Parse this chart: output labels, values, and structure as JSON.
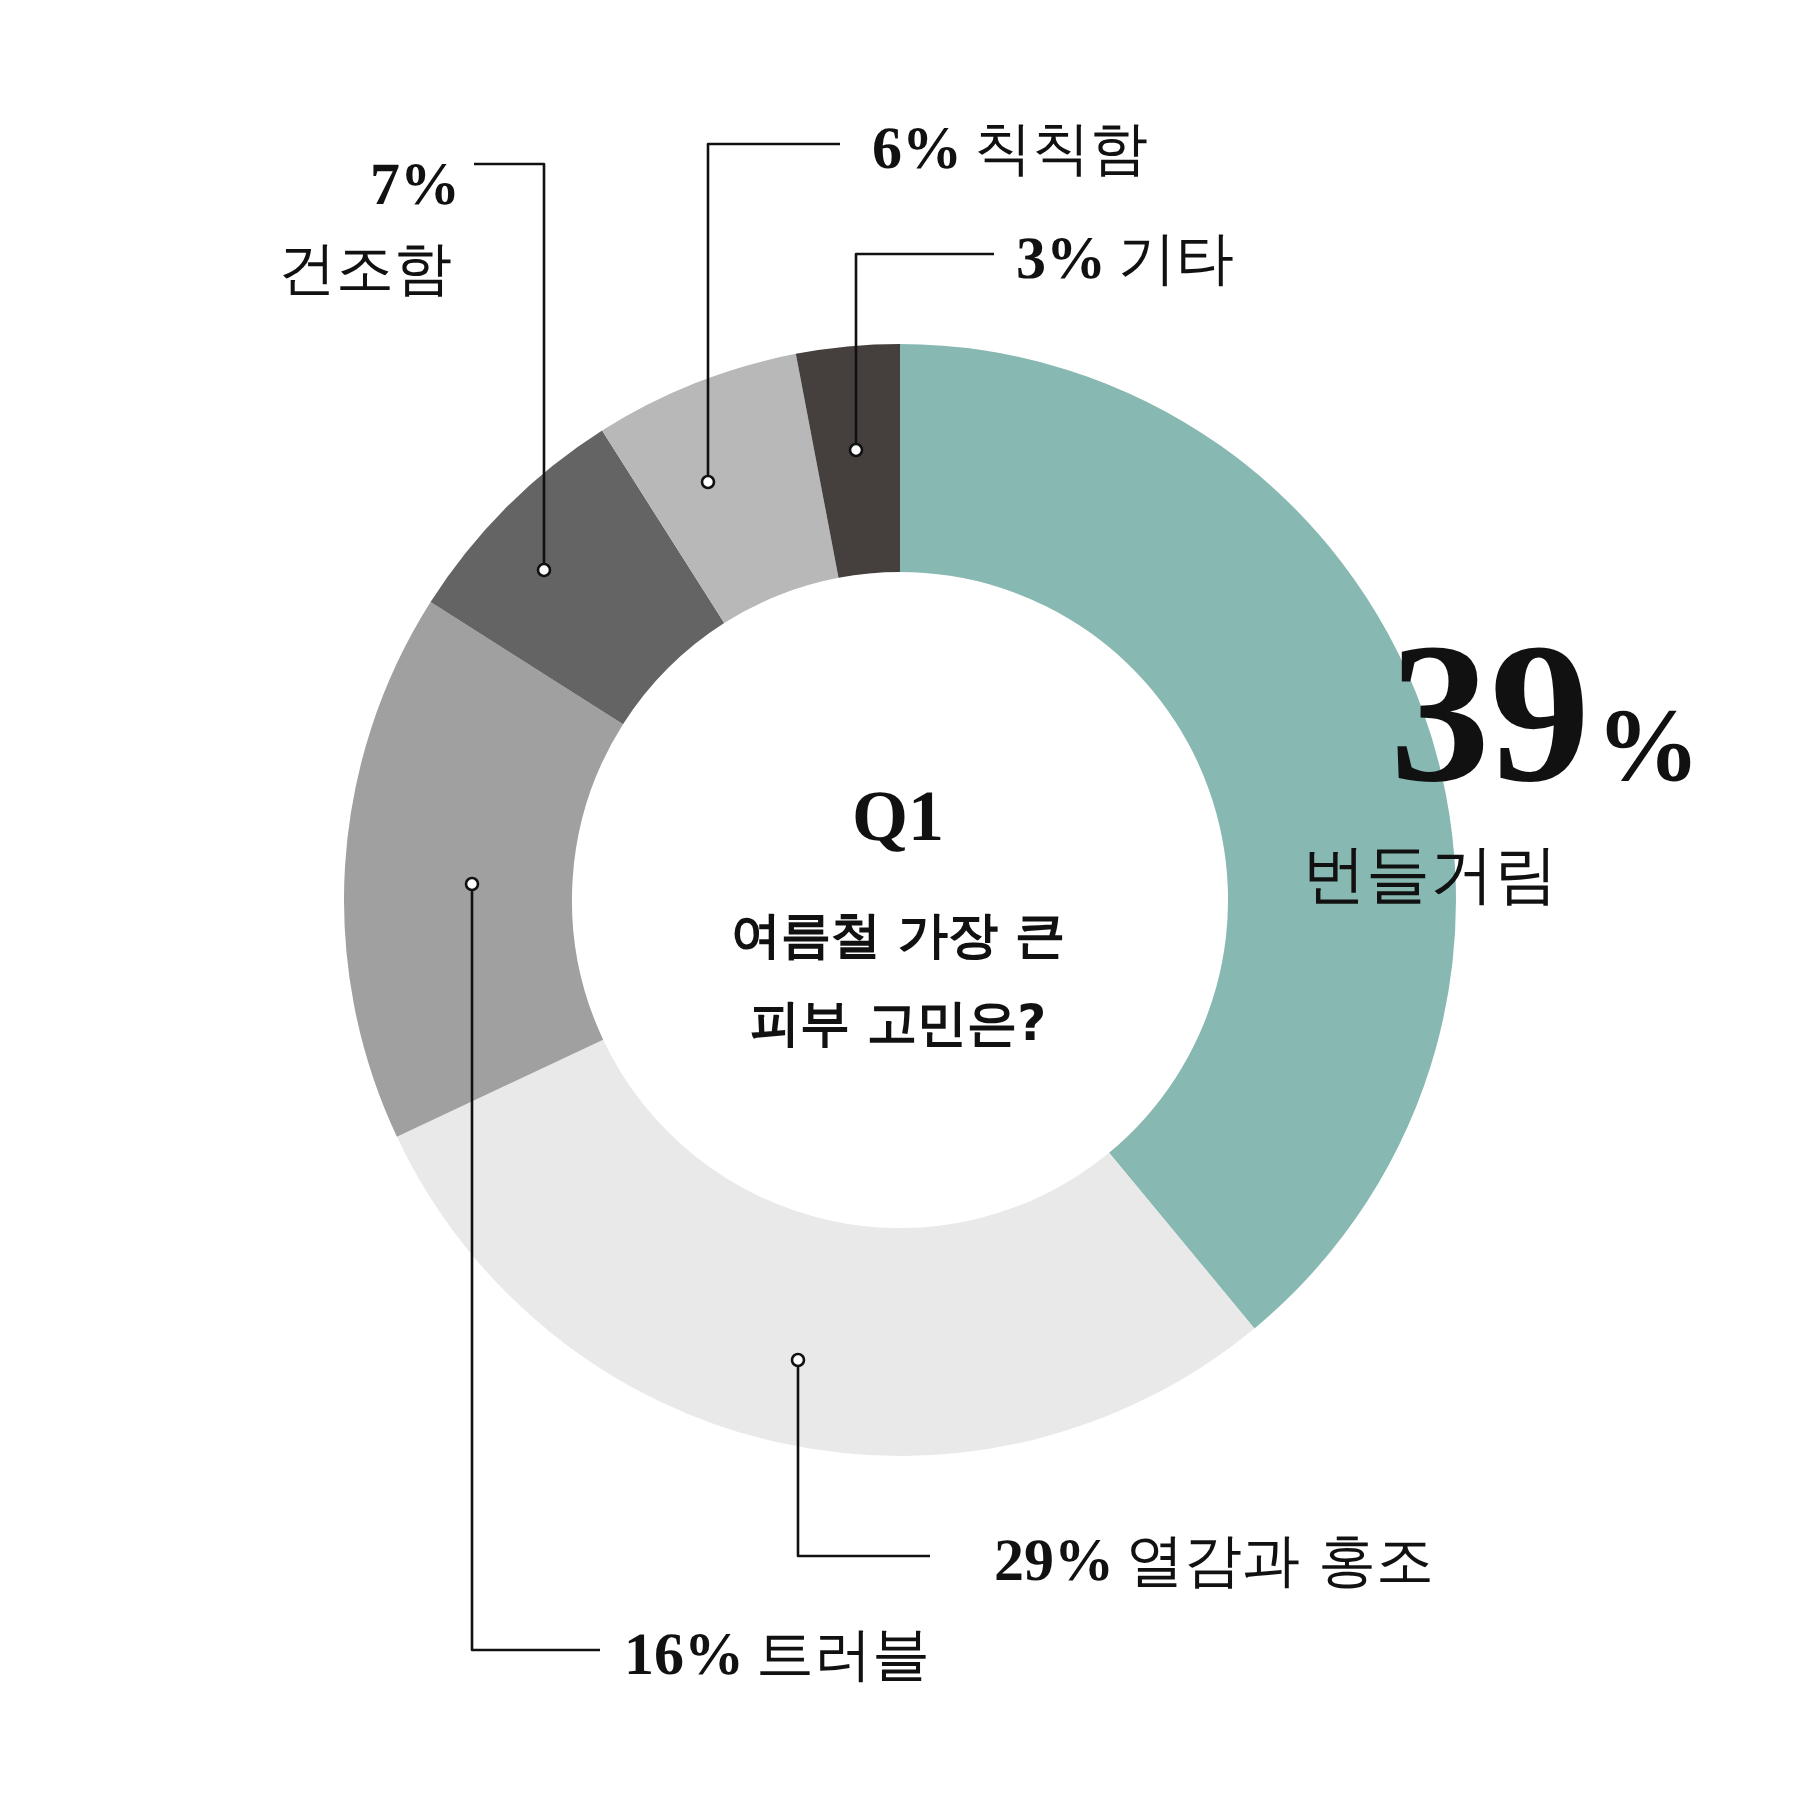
{
  "chart_data": {
    "type": "donut",
    "title": "Q1",
    "subtitle": "여름철 가장 큰 피부 고민은?",
    "categories": [
      "번들거림",
      "열감과 홍조",
      "트러블",
      "건조함",
      "칙칙함",
      "기타"
    ],
    "values": [
      39,
      29,
      16,
      7,
      6,
      3
    ],
    "colors": [
      "#88b8b2",
      "#e8e9e8",
      "#a0a0a0",
      "#646464",
      "#b8b8b8",
      "#453f3e"
    ],
    "value_labels": [
      "39%",
      "29%",
      "16%",
      "7%",
      "6%",
      "3%"
    ],
    "legend": false
  }
}
